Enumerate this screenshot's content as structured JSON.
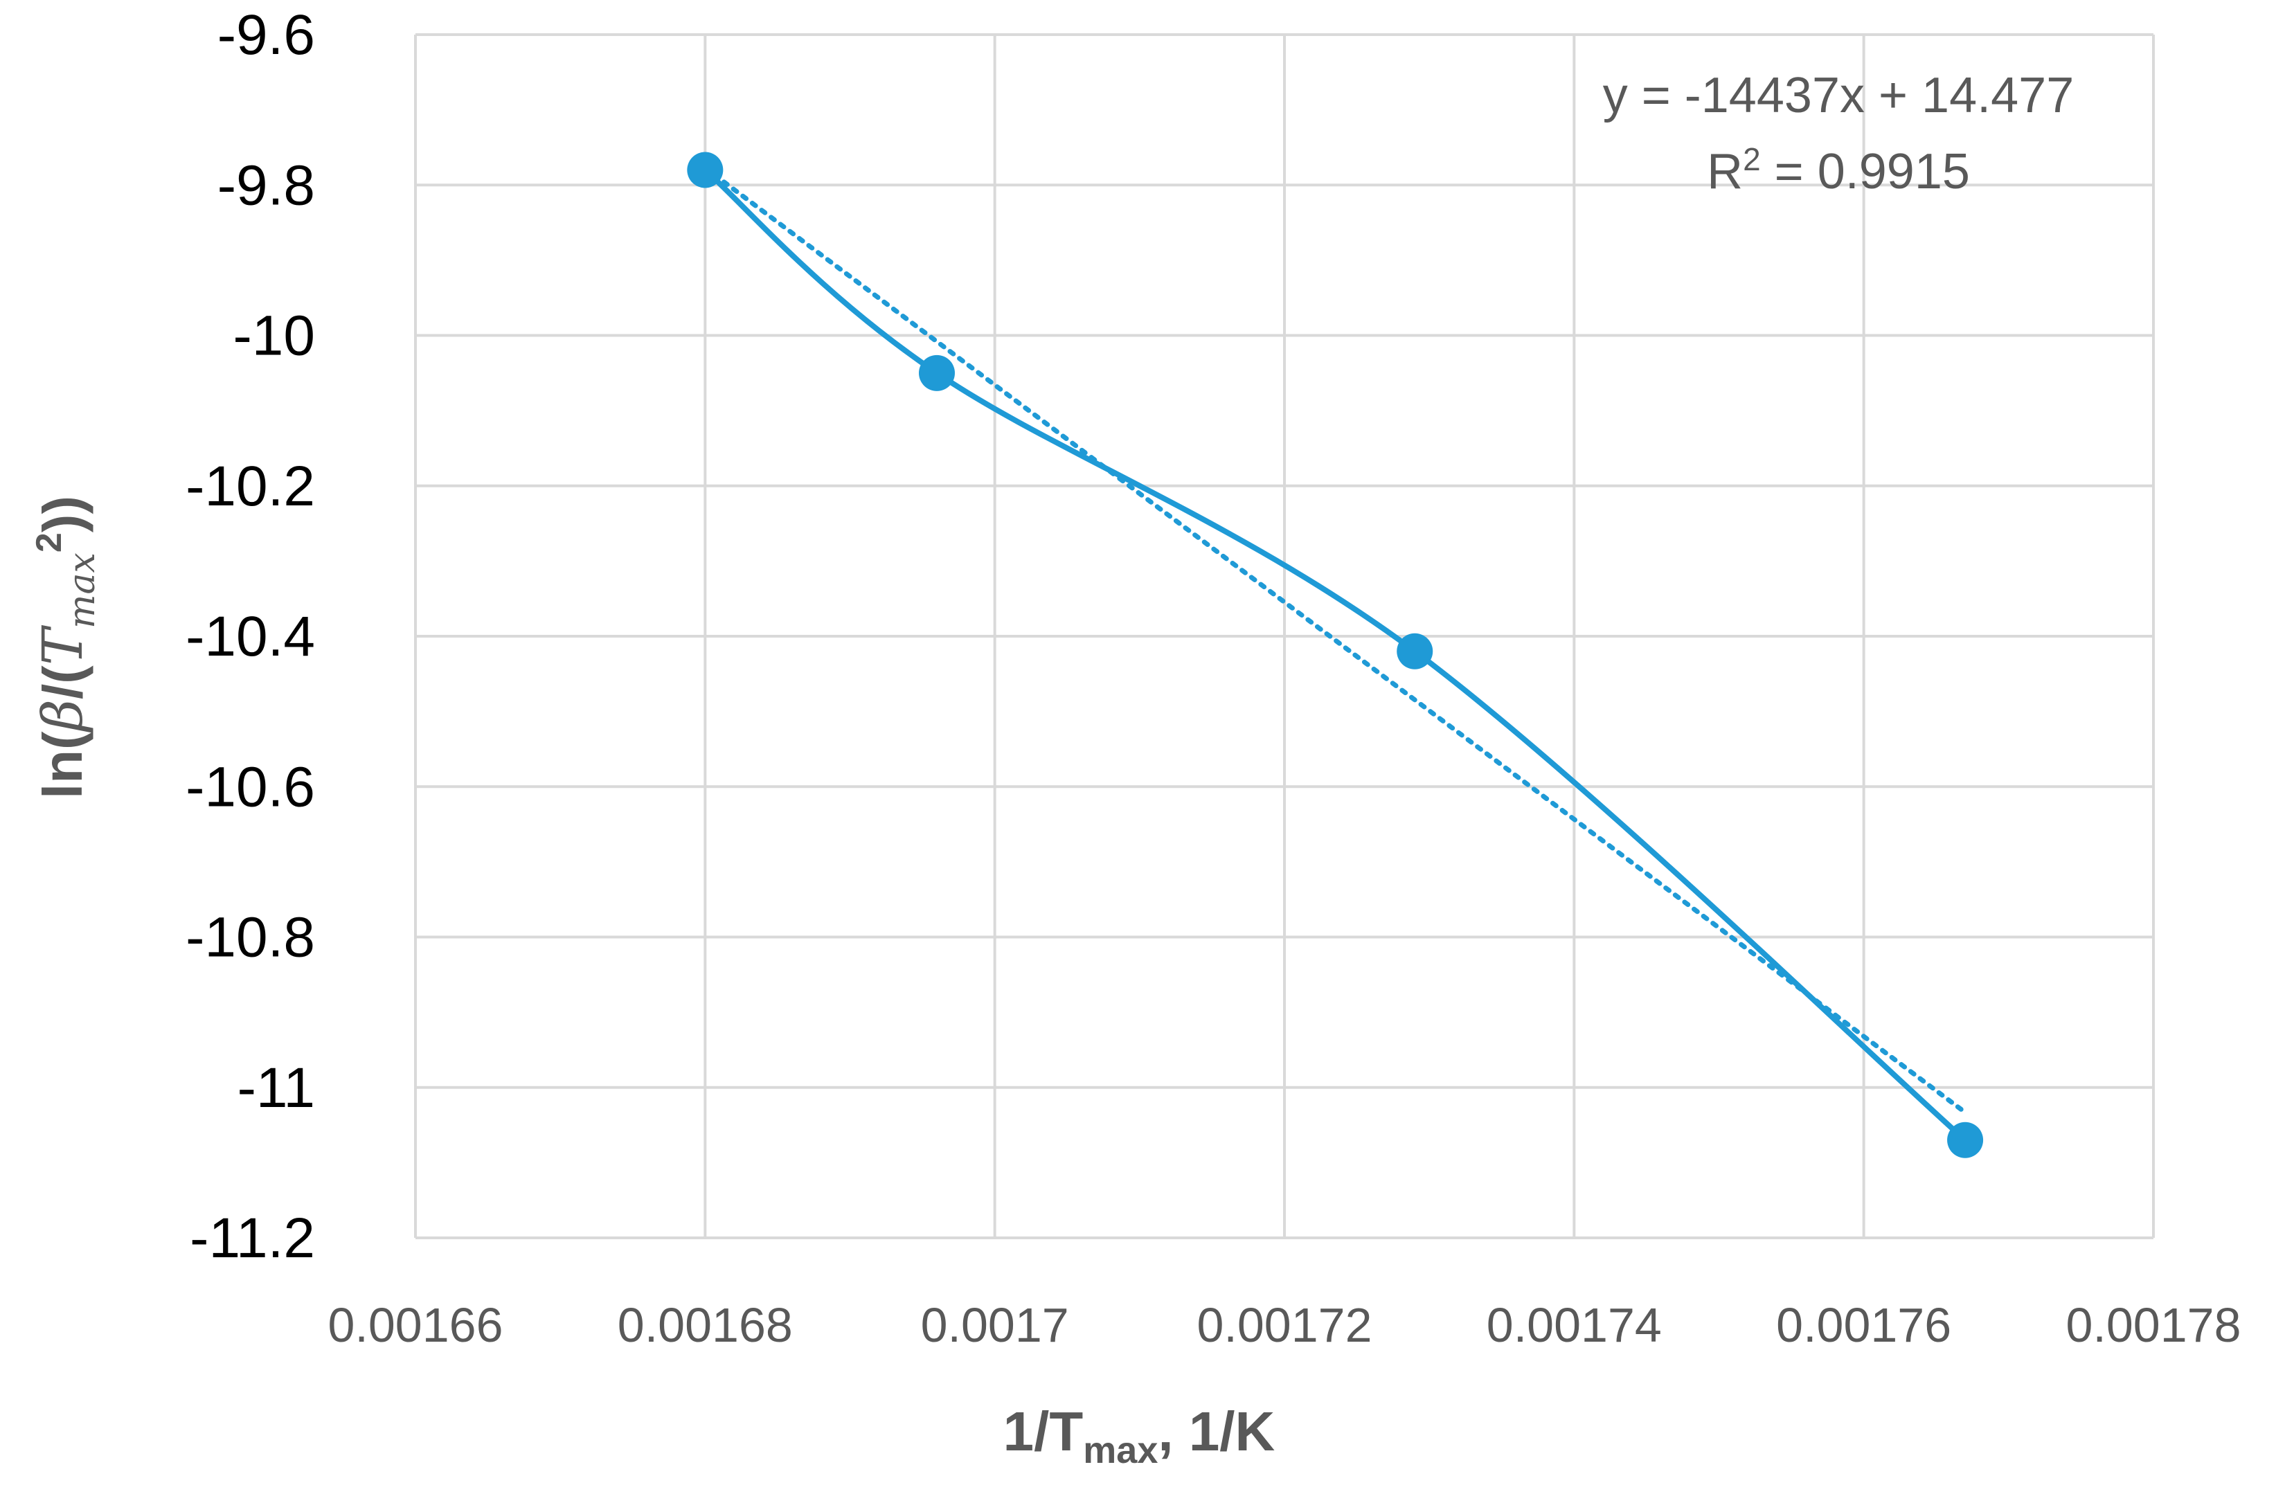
{
  "chart_data": {
    "type": "scatter",
    "title": "",
    "xlabel": {
      "main": "1/T",
      "sub": "max",
      "rest": ", 1/K"
    },
    "ylabel": {
      "prefix": "ln(",
      "beta": "β",
      "slash": "/(",
      "t": "T",
      "sub": "max",
      "sup": "2",
      "suffix": "))"
    },
    "xlim": [
      0.00166,
      0.00178
    ],
    "ylim": [
      -11.2,
      -9.6
    ],
    "x_ticks": [
      0.00166,
      0.00168,
      0.0017,
      0.00172,
      0.00174,
      0.00176,
      0.00178
    ],
    "x_tick_labels": [
      "0.00166",
      "0.00168",
      "0.0017",
      "0.00172",
      "0.00174",
      "0.00176",
      "0.00178"
    ],
    "y_ticks": [
      -9.6,
      -9.8,
      -10,
      -10.2,
      -10.4,
      -10.6,
      -10.8,
      -11,
      -11.2
    ],
    "y_tick_labels": [
      "-9.6",
      "-9.8",
      "-10",
      "-10.2",
      "-10.4",
      "-10.6",
      "-10.8",
      "-11",
      "-11.2"
    ],
    "grid": true,
    "series": [
      {
        "x": [
          0.00168,
          0.001696,
          0.001729,
          0.001767
        ],
        "y": [
          -9.78,
          -10.05,
          -10.42,
          -11.07
        ],
        "color": "#1f9ad6",
        "style": "smoothed line with markers"
      }
    ],
    "trendline": {
      "type": "linear",
      "slope": -14437,
      "intercept": 14.477,
      "style": "dotted",
      "equation": "y = -14437x + 14.477",
      "r2_label": "R",
      "r2_sup": "2",
      "r2_value": " = 0.9915"
    }
  }
}
